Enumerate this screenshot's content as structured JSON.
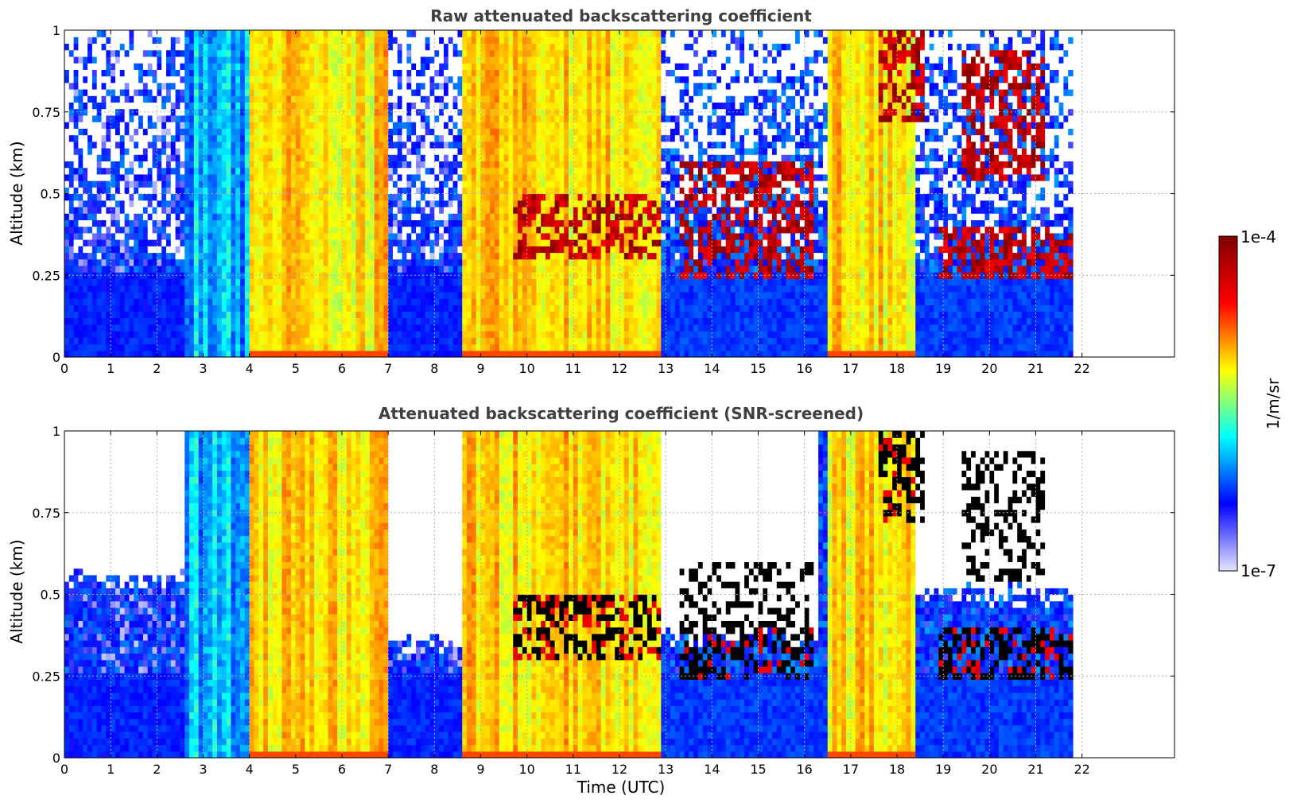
{
  "chart_data": [
    {
      "type": "heatmap",
      "title": "Raw attenuated backscattering coefficient",
      "xlabel": "",
      "ylabel": "Altitude (km)",
      "xlim": [
        0,
        24
      ],
      "ylim": [
        0,
        1
      ],
      "xticks": [
        "0",
        "1",
        "2",
        "3",
        "4",
        "5",
        "6",
        "7",
        "8",
        "9",
        "10",
        "11",
        "12",
        "13",
        "14",
        "15",
        "16",
        "17",
        "18",
        "19",
        "20",
        "21",
        "22"
      ],
      "yticks": [
        "0",
        "0.25",
        "0.5",
        "0.75",
        "1"
      ],
      "grid": true,
      "data_extent_hours": [
        0,
        21.8
      ],
      "colormap": "jet",
      "color_scale": "log",
      "color_range": [
        1e-07,
        0.0001
      ],
      "bands": [
        {
          "x": [
            0,
            2.6
          ],
          "level": "low-noisy"
        },
        {
          "x": [
            2.6,
            4.0
          ],
          "level": "mid-low"
        },
        {
          "x": [
            4.0,
            7.0
          ],
          "level": "high"
        },
        {
          "x": [
            7.0,
            8.6
          ],
          "level": "low-noisy"
        },
        {
          "x": [
            8.6,
            12.9
          ],
          "level": "high"
        },
        {
          "x": [
            12.9,
            16.3
          ],
          "level": "low"
        },
        {
          "x": [
            16.5,
            18.4
          ],
          "level": "high"
        },
        {
          "x": [
            18.4,
            21.8
          ],
          "level": "low"
        }
      ],
      "cloud_layers": [
        {
          "x": [
            9.7,
            12.9
          ],
          "y": [
            0.3,
            0.5
          ],
          "level": "max"
        },
        {
          "x": [
            13.3,
            16.2
          ],
          "y": [
            0.25,
            0.6
          ],
          "level": "max"
        },
        {
          "x": [
            18.9,
            21.8
          ],
          "y": [
            0.25,
            0.4
          ],
          "level": "max"
        },
        {
          "x": [
            17.6,
            18.6
          ],
          "y": [
            0.72,
            1.0
          ],
          "level": "max"
        },
        {
          "x": [
            19.4,
            21.2
          ],
          "y": [
            0.55,
            0.95
          ],
          "level": "max"
        }
      ]
    },
    {
      "type": "heatmap",
      "title": "Attenuated backscattering coefficient (SNR-screened)",
      "xlabel": "Time (UTC)",
      "ylabel": "Altitude (km)",
      "xlim": [
        0,
        24
      ],
      "ylim": [
        0,
        1
      ],
      "xticks": [
        "0",
        "1",
        "2",
        "3",
        "4",
        "5",
        "6",
        "7",
        "8",
        "9",
        "10",
        "11",
        "12",
        "13",
        "14",
        "15",
        "16",
        "17",
        "18",
        "19",
        "20",
        "21",
        "22"
      ],
      "yticks": [
        "0",
        "0.25",
        "0.5",
        "0.75",
        "1"
      ],
      "grid": true,
      "data_extent_hours": [
        0,
        21.8
      ],
      "colormap": "jet",
      "color_scale": "log",
      "color_range": [
        1e-07,
        0.0001
      ],
      "screened_above_km": [
        {
          "x": [
            0,
            2.6
          ],
          "y": 0.55
        },
        {
          "x": [
            7.0,
            8.6
          ],
          "y": 0.35
        },
        {
          "x": [
            12.9,
            16.3
          ],
          "y": 0.38
        },
        {
          "x": [
            18.4,
            21.8
          ],
          "y": 0.5
        }
      ],
      "saturated_color": "#000000"
    }
  ],
  "colorbar": {
    "label": "1/m/sr",
    "max_label": "1e-4",
    "min_label": "1e-7",
    "colors": [
      "#e6e6ff",
      "#0000ff",
      "#00ffff",
      "#ffff00",
      "#ff0000",
      "#800000"
    ]
  }
}
